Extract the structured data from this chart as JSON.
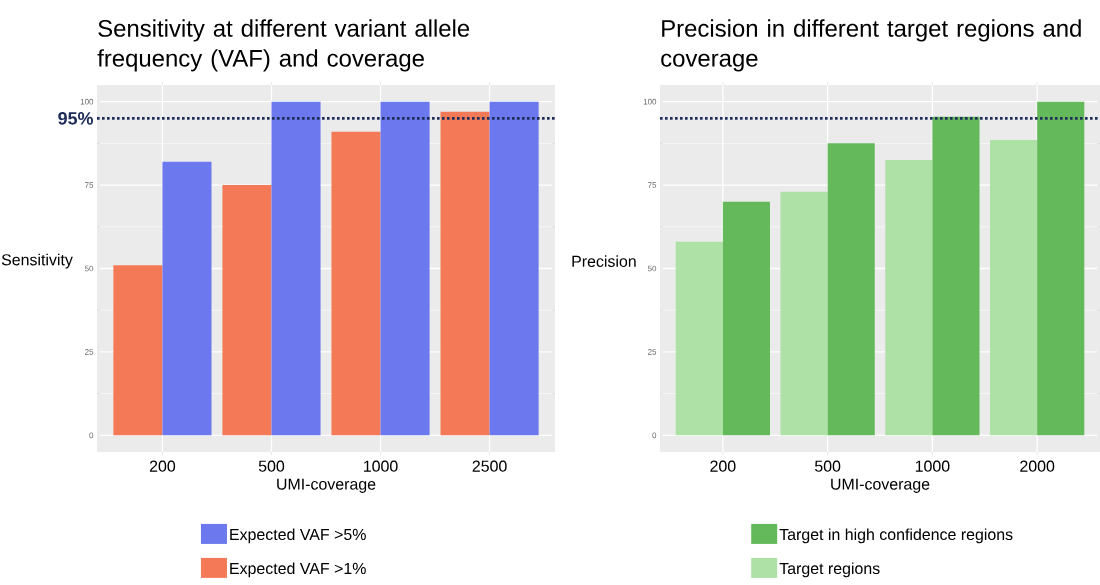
{
  "chart_data": [
    {
      "type": "bar",
      "title": "Sensitivity at different variant allele frequency (VAF) and coverage",
      "xlabel": "UMI-coverage",
      "ylabel": "Sensitivity",
      "categories": [
        "200",
        "500",
        "1000",
        "2500"
      ],
      "series": [
        {
          "name": "Expected VAF >1%",
          "color": "#f47a57",
          "values": [
            51,
            75,
            91,
            97
          ]
        },
        {
          "name": "Expected VAF >5%",
          "color": "#6c78ee",
          "values": [
            82,
            100,
            100,
            100
          ]
        }
      ],
      "ylim": [
        -5,
        105
      ],
      "yticks": [
        0,
        25,
        50,
        75,
        100
      ],
      "grid": true,
      "legend": "bottom",
      "ref_lines": [
        {
          "axis": "y",
          "value": 95,
          "label": "95%",
          "color": "#1f2d5a",
          "line_style": "dotted"
        }
      ]
    },
    {
      "type": "bar",
      "title": "Precision in different target regions and coverage",
      "xlabel": "UMI-coverage",
      "ylabel": "Precision",
      "categories": [
        "200",
        "500",
        "1000",
        "2000"
      ],
      "series": [
        {
          "name": "Target regions",
          "color": "#ade1a5",
          "values": [
            58,
            73,
            82.5,
            88.5
          ]
        },
        {
          "name": "Target in high confidence regions",
          "color": "#64b95a",
          "values": [
            70,
            87.5,
            95.5,
            100
          ]
        }
      ],
      "ylim": [
        -5,
        105
      ],
      "yticks": [
        0,
        25,
        50,
        75,
        100
      ],
      "grid": true,
      "legend": "bottom",
      "ref_lines": [
        {
          "axis": "y",
          "value": 95,
          "color": "#1f2d5a",
          "line_style": "dotted"
        }
      ]
    }
  ]
}
